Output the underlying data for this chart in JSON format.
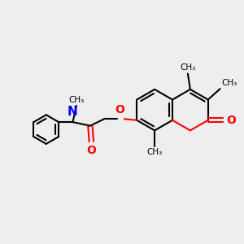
{
  "bg_color": "#eeeeee",
  "bond_color": "#000000",
  "oxygen_color": "#ff0000",
  "nitrogen_color": "#0000ff",
  "line_width": 1.5,
  "font_size": 9,
  "xlim": [
    0,
    10
  ],
  "ylim": [
    0,
    10
  ]
}
